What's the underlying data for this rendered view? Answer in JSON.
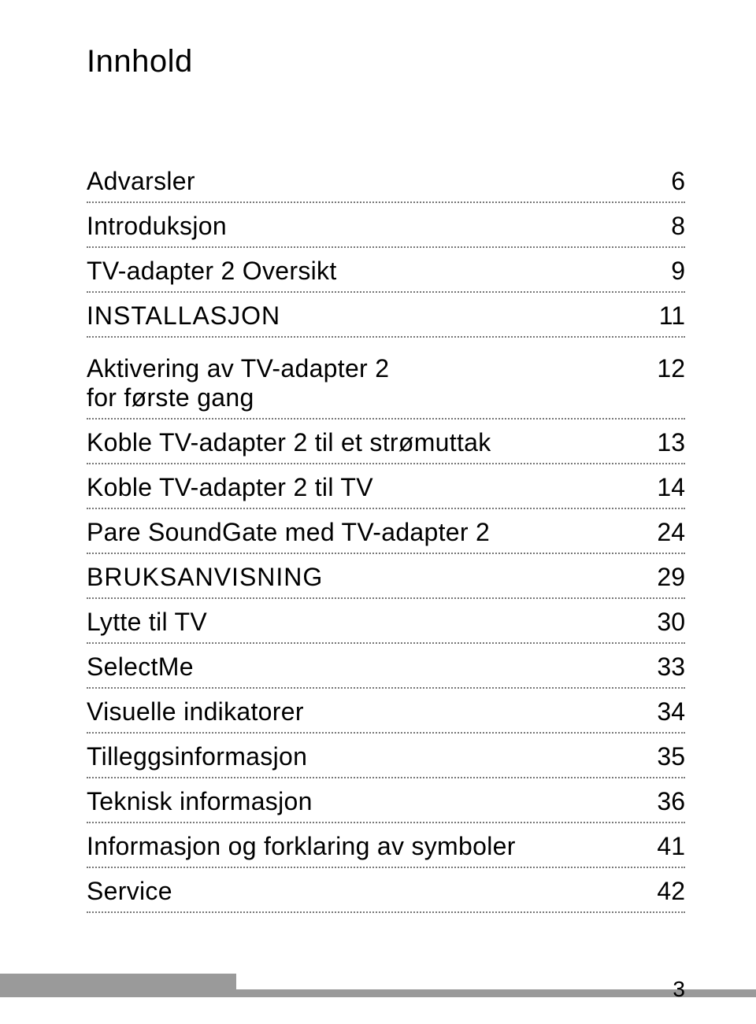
{
  "title": "Innhold",
  "toc": [
    {
      "label": "Advarsler",
      "page": "6",
      "style": "normal"
    },
    {
      "label": "Introduksjon",
      "page": "8",
      "style": "normal"
    },
    {
      "label": "TV-adapter 2 Oversikt",
      "page": "9",
      "style": "normal"
    },
    {
      "label": "INSTALLASJON",
      "page": "11",
      "style": "section"
    },
    {
      "label": "Aktivering av TV-adapter 2\nfor første gang",
      "page": "12",
      "style": "multiline"
    },
    {
      "label": "Koble TV-adapter 2 til et strømuttak",
      "page": "13",
      "style": "normal"
    },
    {
      "label": "Koble TV-adapter 2 til TV",
      "page": "14",
      "style": "normal"
    },
    {
      "label": "Pare SoundGate med TV-adapter 2",
      "page": "24",
      "style": "normal"
    },
    {
      "label": "BRUKSANVISNING",
      "page": "29",
      "style": "section"
    },
    {
      "label": "Lytte til TV",
      "page": "30",
      "style": "normal"
    },
    {
      "label": "SelectMe",
      "page": "33",
      "style": "normal"
    },
    {
      "label": "Visuelle indikatorer",
      "page": "34",
      "style": "normal"
    },
    {
      "label": "Tilleggsinformasjon",
      "page": "35",
      "style": "normal"
    },
    {
      "label": "Teknisk informasjon",
      "page": "36",
      "style": "normal"
    },
    {
      "label": "Informasjon og forklaring av symboler",
      "page": "41",
      "style": "normal"
    },
    {
      "label": "Service",
      "page": "42",
      "style": "normal"
    }
  ],
  "footer_page": "3",
  "colors": {
    "text": "#000000",
    "dotted_border": "#777777",
    "background": "#ffffff",
    "footer_gray": "#9a9a9a"
  },
  "typography": {
    "title_fontsize": 40,
    "toc_fontsize": 32,
    "footer_fontsize": 28
  }
}
